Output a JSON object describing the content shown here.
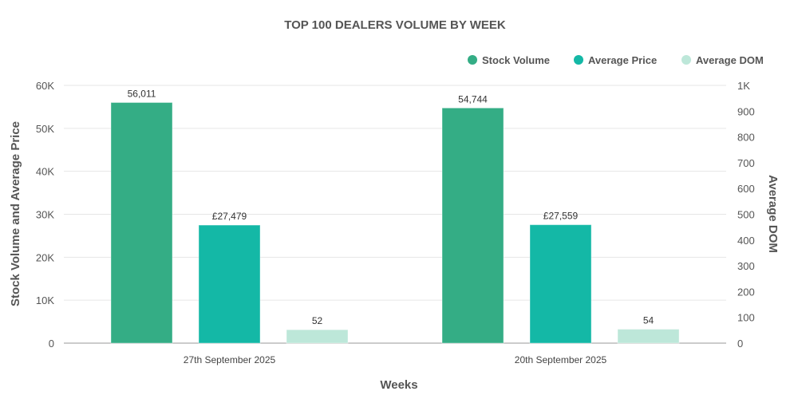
{
  "chart_data": {
    "type": "bar",
    "title": "TOP 100 DEALERS VOLUME BY WEEK",
    "xlabel": "Weeks",
    "ylabel": "Stock Volume and Average Price",
    "y2label": "Average DOM",
    "categories": [
      "27th September 2025",
      "20th September 2025"
    ],
    "ylim": [
      0,
      60000
    ],
    "y2lim": [
      0,
      1000
    ],
    "yticks": [
      "0",
      "10K",
      "20K",
      "30K",
      "40K",
      "50K",
      "60K"
    ],
    "y2ticks": [
      "0",
      "100",
      "200",
      "300",
      "400",
      "500",
      "600",
      "700",
      "800",
      "900",
      "1K"
    ],
    "grid": true,
    "legend_position": "top-right",
    "series": [
      {
        "name": "Stock Volume",
        "axis": "left",
        "color": "#34ad85",
        "values": [
          56011,
          54744
        ],
        "labels": [
          "56,011",
          "54,744"
        ]
      },
      {
        "name": "Average Price",
        "axis": "left",
        "color": "#14b8a6",
        "values": [
          27479,
          27559
        ],
        "labels": [
          "£27,479",
          "£27,559"
        ]
      },
      {
        "name": "Average DOM",
        "axis": "right",
        "color": "#bde7d9",
        "values": [
          52,
          54
        ],
        "labels": [
          "52",
          "54"
        ]
      }
    ]
  }
}
